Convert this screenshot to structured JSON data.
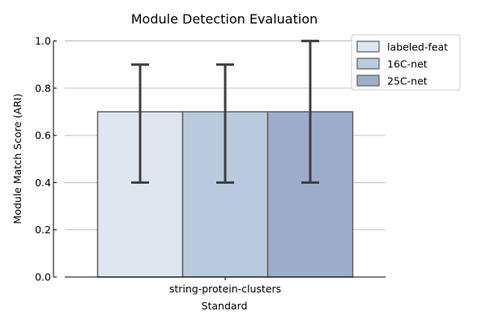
{
  "chart_data": {
    "type": "bar",
    "title": "Module Detection Evaluation",
    "xlabel": "Standard",
    "ylabel": "Module Match Score (ARI)",
    "categories": [
      "string-protein-clusters"
    ],
    "ylim": [
      0,
      1.05
    ],
    "yticks": [
      0.0,
      0.2,
      0.4,
      0.6,
      0.8,
      1.0
    ],
    "ytick_labels": [
      "0.0",
      "0.2",
      "0.4",
      "0.6",
      "0.8",
      "1.0"
    ],
    "grid": "horizontal",
    "legend_position": "top-right-outside",
    "series": [
      {
        "name": "labeled-feat",
        "values": [
          0.7
        ],
        "err_low": [
          0.4
        ],
        "err_high": [
          0.9
        ],
        "color": "#dfe6ef"
      },
      {
        "name": "16C-net",
        "values": [
          0.7
        ],
        "err_low": [
          0.4
        ],
        "err_high": [
          0.9
        ],
        "color": "#b9cbdc"
      },
      {
        "name": "25C-net",
        "values": [
          0.7
        ],
        "err_low": [
          0.4
        ],
        "err_high": [
          1.0
        ],
        "color": "#9dadcb"
      }
    ]
  }
}
